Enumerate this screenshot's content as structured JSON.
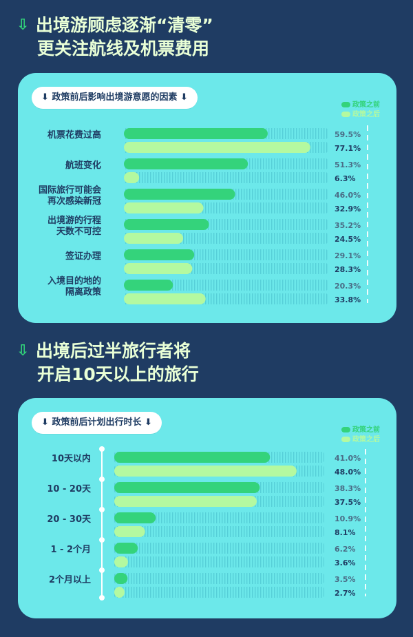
{
  "headings": {
    "section1": {
      "line1": "出境游顾虑逐渐“清零”",
      "line2": "更关注航线及机票费用"
    },
    "section2": {
      "line1": "出境后过半旅行者将",
      "line2": "开启10天以上的旅行"
    }
  },
  "colors": {
    "before": "#34d37b",
    "after": "#b4f9a0",
    "navy": "#1f3c63",
    "panel": "#6ce8ea",
    "arrow": "#32d47a"
  },
  "icons": {
    "arrow": "arrow-down-icon"
  },
  "chart_data": [
    {
      "type": "bar",
      "orientation": "horizontal",
      "title": "政策前后影响出境游意愿的因素",
      "legend": [
        "政策之前",
        "政策之后"
      ],
      "legend_position": "top-right",
      "categories": [
        "机票花费过高",
        "航班变化",
        "国际旅行可能会再次感染新冠",
        "出境游的行程天数不可控",
        "签证办理",
        "入境目的地的隔离政策"
      ],
      "category_lines": [
        [
          "机票花费过高"
        ],
        [
          "航班变化"
        ],
        [
          "国际旅行可能会",
          "再次感染新冠"
        ],
        [
          "出境游的行程",
          "天数不可控"
        ],
        [
          "签证办理"
        ],
        [
          "入境目的地的",
          "隔离政策"
        ]
      ],
      "series": [
        {
          "name": "政策之前",
          "values": [
            59.5,
            51.3,
            46.0,
            35.2,
            29.1,
            20.3
          ],
          "labels": [
            "59.5%",
            "51.3%",
            "46.0%",
            "35.2%",
            "29.1%",
            "20.3%"
          ]
        },
        {
          "name": "政策之后",
          "values": [
            77.1,
            6.3,
            32.9,
            24.5,
            28.3,
            33.8
          ],
          "labels": [
            "77.1%",
            "6.3%",
            "32.9%",
            "24.5%",
            "28.3%",
            "33.8%"
          ]
        }
      ],
      "xlim": [
        0,
        86
      ]
    },
    {
      "type": "bar",
      "orientation": "horizontal",
      "title": "政策前后计划出行时长",
      "legend": [
        "政策之前",
        "政策之后"
      ],
      "legend_position": "top-right",
      "categories": [
        "10天以内",
        "10 - 20天",
        "20 - 30天",
        "1 - 2个月",
        "2个月以上"
      ],
      "category_lines": [
        [
          "10天以内"
        ],
        [
          "10 - 20天"
        ],
        [
          "20 - 30天"
        ],
        [
          "1 - 2个月"
        ],
        [
          "2个月以上"
        ]
      ],
      "series": [
        {
          "name": "政策之前",
          "values": [
            41.0,
            38.3,
            10.9,
            6.2,
            3.5
          ],
          "labels": [
            "41.0%",
            "38.3%",
            "10.9%",
            "6.2%",
            "3.5%"
          ]
        },
        {
          "name": "政策之后",
          "values": [
            48.0,
            37.5,
            8.1,
            3.6,
            2.7
          ],
          "labels": [
            "48.0%",
            "37.5%",
            "8.1%",
            "3.6%",
            "2.7%"
          ]
        }
      ],
      "xlim": [
        0,
        54
      ]
    }
  ]
}
